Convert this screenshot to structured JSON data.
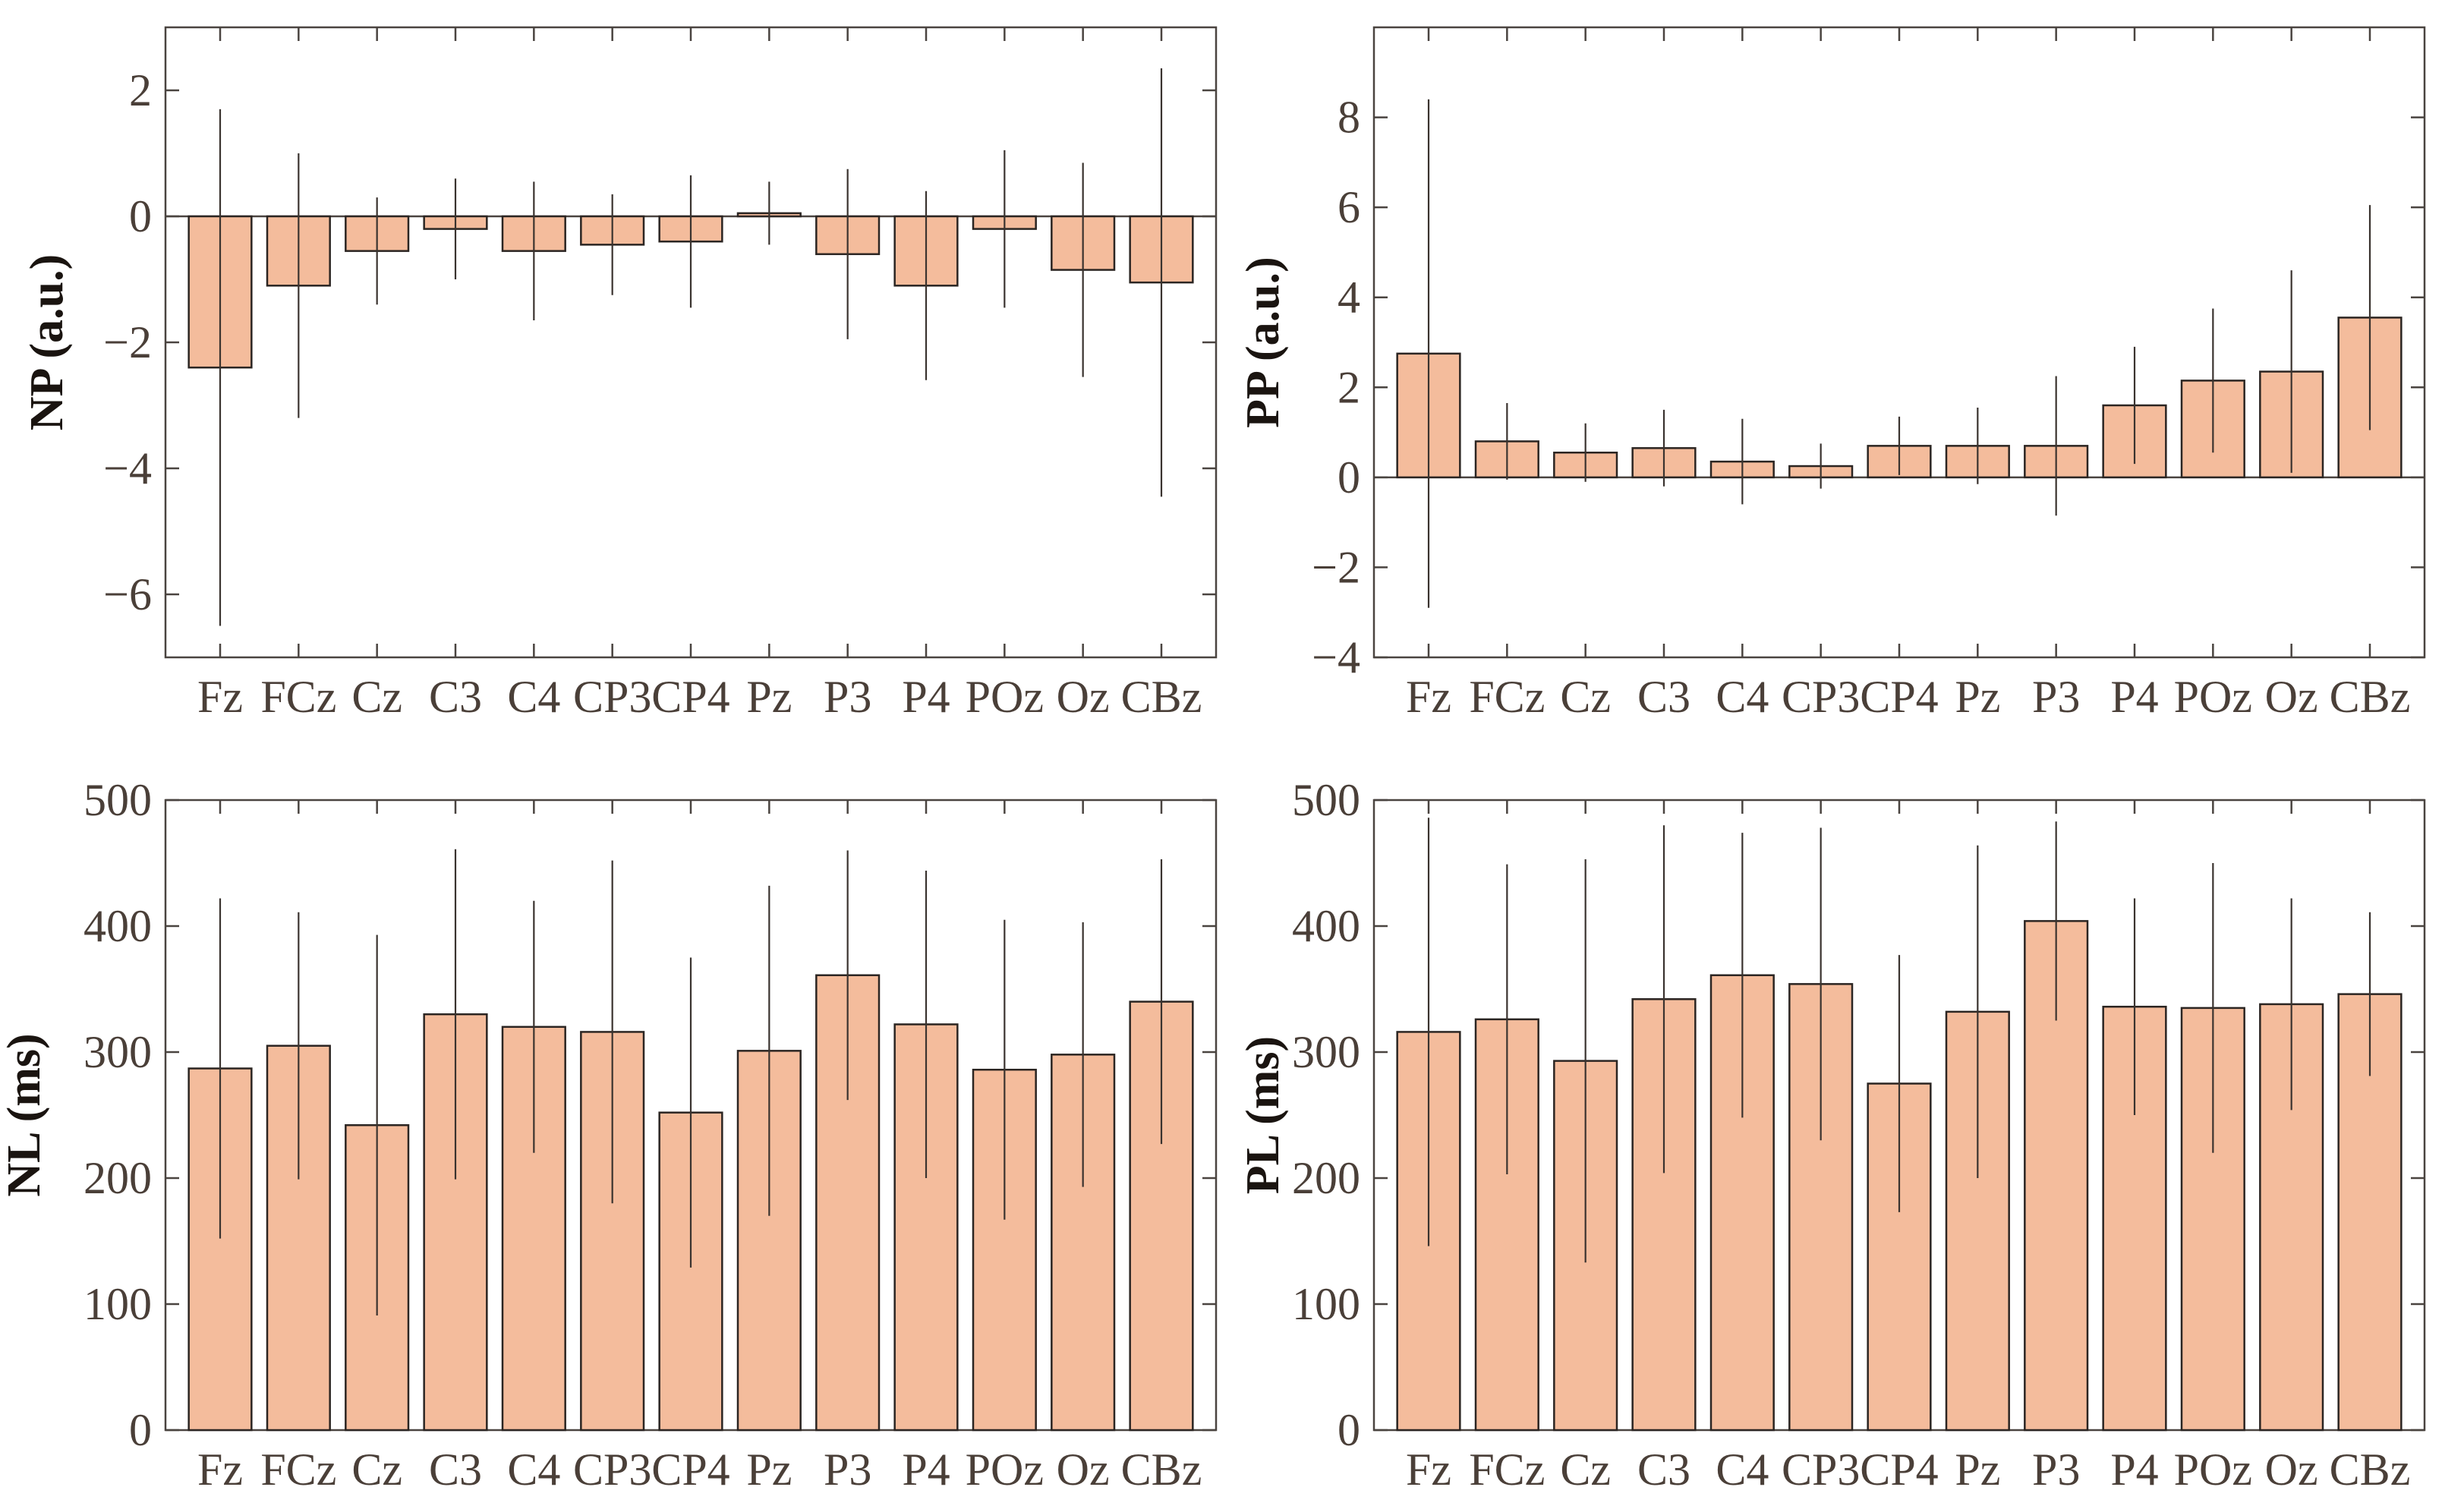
{
  "colors": {
    "bar_fill": "#f4bc9c",
    "frame": "#4a4440",
    "text": "#4a3f38"
  },
  "chart_data": [
    {
      "id": "np",
      "type": "bar",
      "ylabel": "NP (a.u.)",
      "categories": [
        "Fz",
        "FCz",
        "Cz",
        "C3",
        "C4",
        "CP3",
        "CP4",
        "Pz",
        "P3",
        "P4",
        "POz",
        "Oz",
        "CBz"
      ],
      "values": [
        -2.4,
        -1.1,
        -0.55,
        -0.2,
        -0.55,
        -0.45,
        -0.4,
        0.05,
        -0.6,
        -1.1,
        -0.2,
        -0.85,
        -1.05
      ],
      "error": [
        4.1,
        2.1,
        0.85,
        0.8,
        1.1,
        0.8,
        1.05,
        0.5,
        1.35,
        1.5,
        1.25,
        1.7,
        3.4
      ],
      "ylim": [
        -7,
        3
      ],
      "yticks": [
        -6,
        -4,
        -2,
        0,
        2
      ],
      "ytick_labels": [
        "−6",
        "−4",
        "−2",
        "0",
        "2"
      ],
      "zero_line": true,
      "grid": false
    },
    {
      "id": "pp",
      "type": "bar",
      "ylabel": "PP (a.u.)",
      "categories": [
        "Fz",
        "FCz",
        "Cz",
        "C3",
        "C4",
        "CP3",
        "CP4",
        "Pz",
        "P3",
        "P4",
        "POz",
        "Oz",
        "CBz"
      ],
      "values": [
        2.75,
        0.8,
        0.55,
        0.65,
        0.35,
        0.25,
        0.7,
        0.7,
        0.7,
        1.6,
        2.15,
        2.35,
        3.55
      ],
      "error": [
        5.65,
        0.85,
        0.65,
        0.85,
        0.95,
        0.5,
        0.65,
        0.85,
        1.55,
        1.3,
        1.6,
        2.25,
        2.5
      ],
      "ylim": [
        -4,
        10
      ],
      "yticks": [
        -4,
        -2,
        0,
        2,
        4,
        6,
        8
      ],
      "ytick_labels": [
        "−4",
        "−2",
        "0",
        "2",
        "4",
        "6",
        "8"
      ],
      "zero_line": true,
      "grid": false
    },
    {
      "id": "nl",
      "type": "bar",
      "ylabel": "NL (ms)",
      "categories": [
        "Fz",
        "FCz",
        "Cz",
        "C3",
        "C4",
        "CP3",
        "CP4",
        "Pz",
        "P3",
        "P4",
        "POz",
        "Oz",
        "CBz"
      ],
      "values": [
        287,
        305,
        242,
        330,
        320,
        316,
        252,
        301,
        361,
        322,
        286,
        298,
        340
      ],
      "error": [
        135,
        106,
        151,
        131,
        100,
        136,
        123,
        131,
        99,
        122,
        119,
        105,
        113
      ],
      "ylim": [
        0,
        500
      ],
      "yticks": [
        0,
        100,
        200,
        300,
        400,
        500
      ],
      "ytick_labels": [
        "0",
        "100",
        "200",
        "300",
        "400",
        "500"
      ],
      "zero_line": false,
      "grid": false
    },
    {
      "id": "pl",
      "type": "bar",
      "ylabel": "PL (ms)",
      "categories": [
        "Fz",
        "FCz",
        "Cz",
        "C3",
        "C4",
        "CP3",
        "CP4",
        "Pz",
        "P3",
        "P4",
        "POz",
        "Oz",
        "CBz"
      ],
      "values": [
        316,
        326,
        293,
        342,
        361,
        354,
        275,
        332,
        404,
        336,
        335,
        338,
        346
      ],
      "error": [
        170,
        123,
        160,
        138,
        113,
        124,
        102,
        132,
        79,
        86,
        115,
        84,
        65
      ],
      "ylim": [
        0,
        500
      ],
      "yticks": [
        0,
        100,
        200,
        300,
        400,
        500
      ],
      "ytick_labels": [
        "0",
        "100",
        "200",
        "300",
        "400",
        "500"
      ],
      "zero_line": false,
      "grid": false
    }
  ]
}
